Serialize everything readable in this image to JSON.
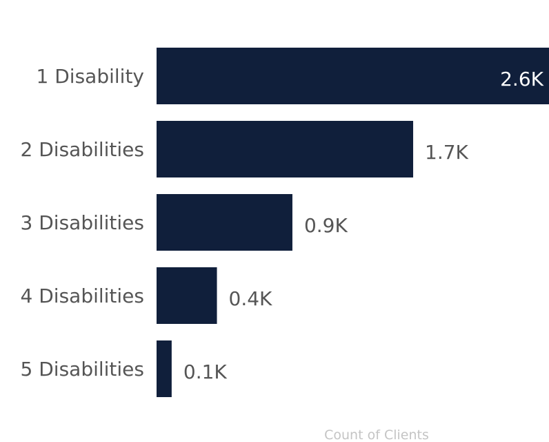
{
  "chart_data": {
    "type": "bar",
    "orientation": "horizontal",
    "categories": [
      "1 Disability",
      "2 Disabilities",
      "3 Disabilities",
      "4 Disabilities",
      "5 Disabilities"
    ],
    "values": [
      2.6,
      1.7,
      0.9,
      0.4,
      0.1
    ],
    "data_labels": [
      "2.6K",
      "1.7K",
      "0.9K",
      "0.4K",
      "0.1K"
    ],
    "xlabel": "Count of Clients",
    "value_unit": "K",
    "xlim": [
      0,
      2.6
    ],
    "grid": false,
    "legend": "none",
    "colors": {
      "bar": "#101f3b",
      "label_inside": "#ffffff",
      "label_outside": "#555555",
      "category_text": "#555555",
      "axis_title": "#c4c4c4"
    }
  }
}
